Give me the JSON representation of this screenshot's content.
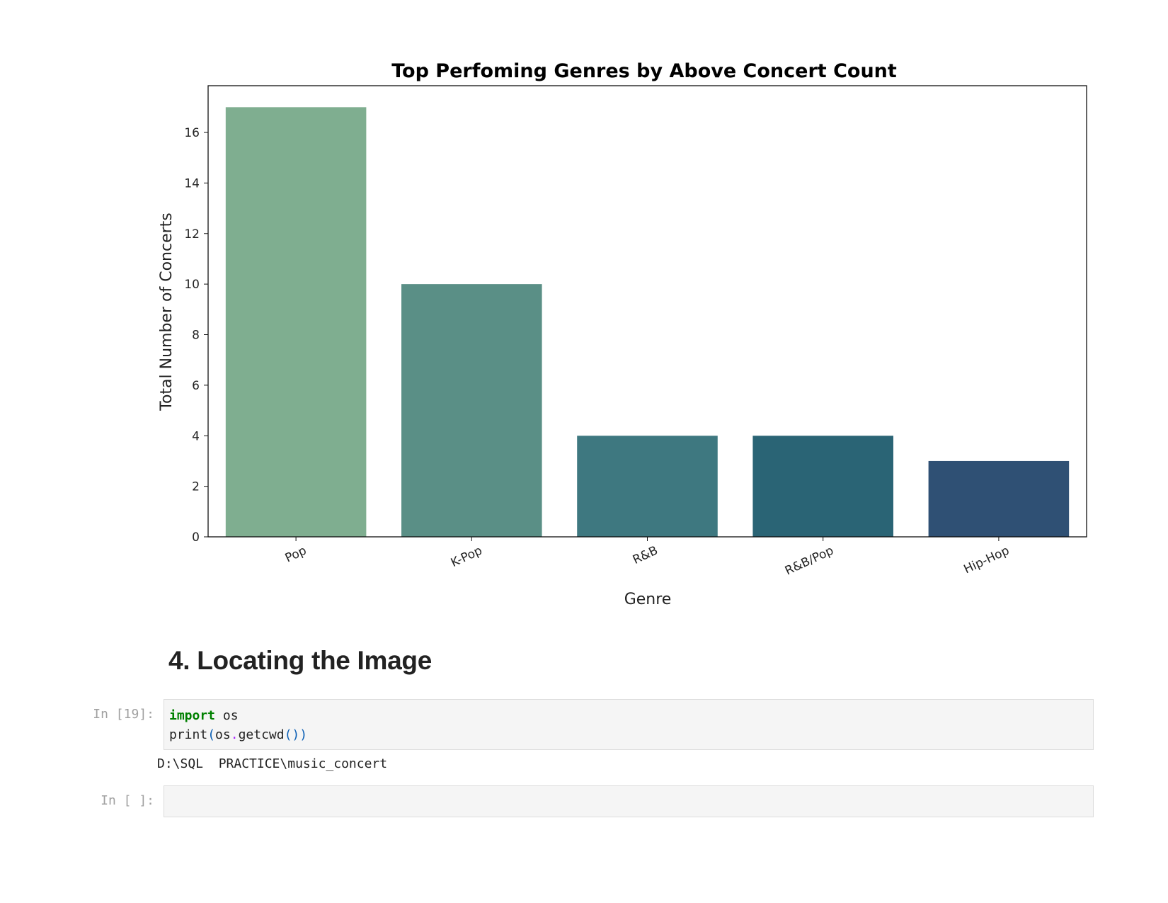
{
  "chart_data": {
    "type": "bar",
    "title": "Top Perfoming Genres by Above Concert Count",
    "xlabel": "Genre",
    "ylabel": "Total Number of Concerts",
    "categories": [
      "Pop",
      "K-Pop",
      "R&B",
      "R&B/Pop",
      "Hip-Hop"
    ],
    "values": [
      17,
      10,
      4,
      4,
      3
    ],
    "colors": [
      "#7fae90",
      "#5a8f86",
      "#3e7880",
      "#2a6475",
      "#2f5074"
    ],
    "ylim": [
      0,
      17.85
    ],
    "yticks": [
      0,
      2,
      4,
      6,
      8,
      10,
      12,
      14,
      16
    ],
    "grid": false,
    "legend": "none"
  },
  "notebook": {
    "heading": "4. Locating the Image",
    "cells": [
      {
        "prompt": "In [19]:",
        "line1": {
          "keyword": "import",
          "rest": " os"
        },
        "line2": {
          "func": "print",
          "open": "(",
          "obj": "os",
          "dot": ".",
          "method": "getcwd",
          "call": "())"
        },
        "output": "D:\\SQL  PRACTICE\\music_concert"
      },
      {
        "prompt": "In [ ]:"
      }
    ]
  }
}
